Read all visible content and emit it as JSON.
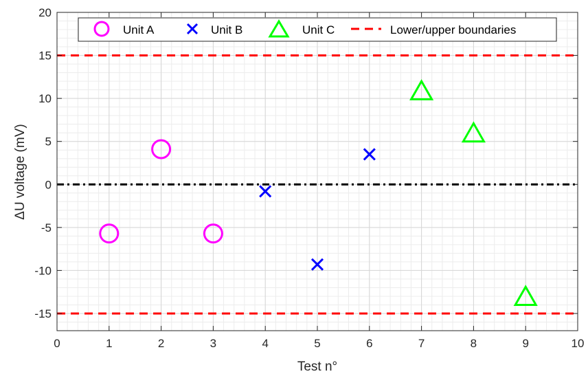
{
  "chart_data": {
    "type": "scatter",
    "title": "",
    "xlabel": "Test n°",
    "ylabel": "ΔU voltage (mV)",
    "xlim": [
      0,
      10
    ],
    "ylim": [
      -17,
      20
    ],
    "x_ticks": [
      0,
      1,
      2,
      3,
      4,
      5,
      6,
      7,
      8,
      9,
      10
    ],
    "y_ticks": [
      -15,
      -10,
      -5,
      0,
      5,
      10,
      15,
      20
    ],
    "grid": true,
    "minor_grid": true,
    "legend_position": "top",
    "series": [
      {
        "name": "Unit A",
        "marker": "circle",
        "color": "#ff00ff",
        "points": [
          [
            1,
            -5.7
          ],
          [
            2,
            4.1
          ],
          [
            3,
            -5.7
          ]
        ]
      },
      {
        "name": "Unit B",
        "marker": "x",
        "color": "#0000ff",
        "points": [
          [
            4,
            -0.8
          ],
          [
            5,
            -9.3
          ],
          [
            6,
            3.5
          ]
        ]
      },
      {
        "name": "Unit C",
        "marker": "triangle",
        "color": "#00ff00",
        "points": [
          [
            7,
            10.8
          ],
          [
            8,
            5.9
          ],
          [
            9,
            -13.1
          ]
        ]
      }
    ],
    "reference_lines": [
      {
        "name": "Lower/upper boundaries",
        "values": [
          15,
          -15
        ],
        "style": "dashed",
        "color": "#ff0000"
      },
      {
        "name": "",
        "values": [
          0
        ],
        "style": "dash-dot",
        "color": "#000000"
      }
    ]
  }
}
